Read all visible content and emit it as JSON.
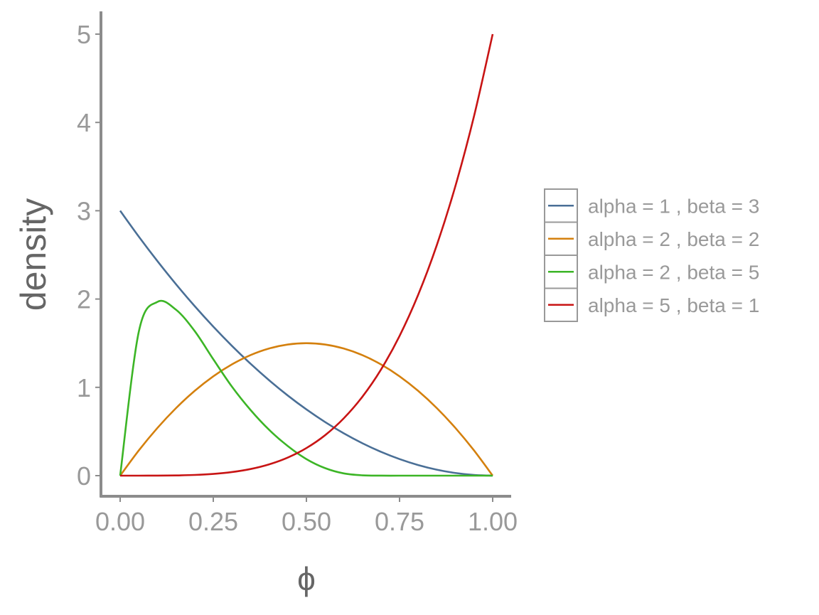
{
  "chart_data": {
    "type": "line",
    "title": "",
    "xlabel": "ϕ",
    "ylabel": "density",
    "xlim": [
      0,
      1
    ],
    "ylim": [
      0,
      5
    ],
    "x_ticks": [
      0,
      0.25,
      0.5,
      0.75,
      1
    ],
    "x_tick_labels": [
      "0.00",
      "0.25",
      "0.50",
      "0.75",
      "1.00"
    ],
    "y_ticks": [
      0,
      1,
      2,
      3,
      4,
      5
    ],
    "y_tick_labels": [
      "0",
      "1",
      "2",
      "3",
      "4",
      "5"
    ],
    "grid": false,
    "legend_position": "right",
    "x": [
      0,
      0.05,
      0.1,
      0.15,
      0.2,
      0.25,
      0.3,
      0.35,
      0.4,
      0.45,
      0.5,
      0.55,
      0.6,
      0.65,
      0.7,
      0.75,
      0.8,
      0.85,
      0.9,
      0.95,
      1
    ],
    "series": [
      {
        "name": "alpha =  1 , beta =  3",
        "color": "#4a6f96",
        "values": [
          3,
          2.7075,
          2.43,
          2.1675,
          1.92,
          1.6875,
          1.47,
          1.2675,
          1.08,
          0.9075,
          0.75,
          0.6075,
          0.48,
          0.3675,
          0.27,
          0.1875,
          0.12,
          0.0675,
          0.03,
          0.0075,
          0
        ]
      },
      {
        "name": "alpha =  2 , beta =  2",
        "color": "#d4800e",
        "values": [
          0,
          0.285,
          0.54,
          0.765,
          0.96,
          1.125,
          1.26,
          1.365,
          1.44,
          1.485,
          1.5,
          1.485,
          1.44,
          1.365,
          1.26,
          1.125,
          0.96,
          0.765,
          0.54,
          0.285,
          0
        ]
      },
      {
        "name": "alpha =  2 , beta =  5",
        "color": "#3cb526",
        "values": [
          0,
          1.629,
          1.968,
          1.879,
          1.638,
          1.3184,
          1.0084,
          0.7437,
          0.5184,
          0.3349,
          0.1875,
          0.0854,
          0.0256,
          0.0037,
          0.0002,
          0,
          0,
          0,
          0,
          0,
          0
        ]
      },
      {
        "name": "alpha =  5 , beta =  1",
        "color": "#c81414",
        "values": [
          0,
          3.13e-05,
          0.0005,
          0.00253,
          0.008,
          0.0195,
          0.0405,
          0.075,
          0.128,
          0.205,
          0.3125,
          0.4575,
          0.648,
          0.8925,
          1.2005,
          1.582,
          2.048,
          2.61,
          3.2805,
          4.0725,
          5
        ]
      }
    ]
  },
  "colors": {
    "axis_line": "#8c8c8c",
    "tick_text": "#999999",
    "axis_title": "#666666",
    "legend_text": "#999999",
    "legend_box": "#999999"
  }
}
